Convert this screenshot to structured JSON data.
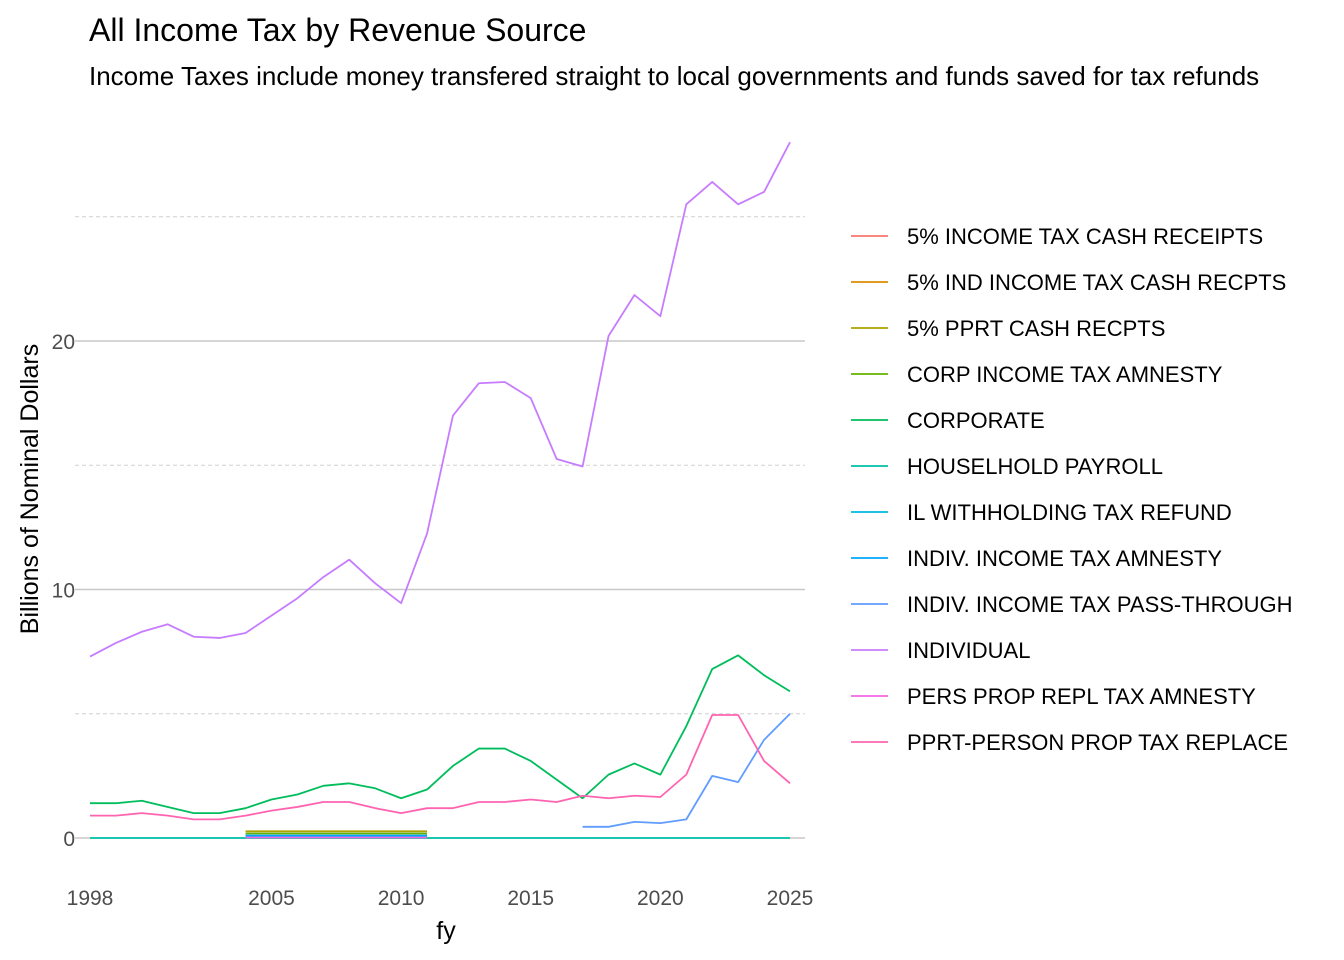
{
  "chart_data": {
    "type": "line",
    "title": "All Income Tax by Revenue Source",
    "subtitle": "Income Taxes include money transfered straight to local governments and funds saved for tax refunds",
    "xlabel": "fy",
    "ylabel": "Billions of Nominal Dollars",
    "xlim": [
      1998,
      2025
    ],
    "ylim": [
      0,
      28
    ],
    "x_ticks": [
      1998,
      2005,
      2010,
      2015,
      2020,
      2025
    ],
    "y_ticks": [
      0,
      10,
      20
    ],
    "y_minor_ticks": [
      5,
      15,
      25
    ],
    "grid": true,
    "legend_position": "right",
    "series": [
      {
        "name": "5% INCOME TAX CASH RECEIPTS",
        "color": "#F8766D",
        "x": [],
        "values": []
      },
      {
        "name": "5% IND INCOME TAX CASH RECPTS",
        "color": "#DB8E00",
        "x": [],
        "values": []
      },
      {
        "name": "5% PPRT CASH RECPTS",
        "color": "#AEA200",
        "x": [
          2004,
          2005,
          2006,
          2007,
          2008,
          2009,
          2010,
          2011
        ],
        "values": [
          0.27,
          0.27,
          0.27,
          0.27,
          0.27,
          0.27,
          0.27,
          0.27
        ]
      },
      {
        "name": "CORP INCOME TAX AMNESTY",
        "color": "#64B200",
        "x": [
          2004,
          2011
        ],
        "values": [
          0.18,
          0.18
        ]
      },
      {
        "name": "CORPORATE",
        "color": "#00BD5C",
        "x": [
          1998,
          1999,
          2000,
          2001,
          2002,
          2003,
          2004,
          2005,
          2006,
          2007,
          2008,
          2009,
          2010,
          2011,
          2012,
          2013,
          2014,
          2015,
          2016,
          2017,
          2018,
          2019,
          2020,
          2021,
          2022,
          2023,
          2024,
          2025
        ],
        "values": [
          1.4,
          1.4,
          1.5,
          1.25,
          1.0,
          1.0,
          1.2,
          1.55,
          1.75,
          2.1,
          2.2,
          2.0,
          1.6,
          1.95,
          2.9,
          3.6,
          3.6,
          3.1,
          2.35,
          1.6,
          2.55,
          3.0,
          2.55,
          4.5,
          6.8,
          7.35,
          6.55,
          5.9
        ]
      },
      {
        "name": "HOUSELHOLD PAYROLL",
        "color": "#00C1A7",
        "x": [
          1998,
          1999,
          2000,
          2001,
          2002,
          2003,
          2004,
          2005,
          2006,
          2007,
          2008,
          2009,
          2010,
          2011,
          2012,
          2013,
          2014,
          2015,
          2016,
          2017,
          2018,
          2019,
          2020,
          2021,
          2022,
          2023,
          2024,
          2025
        ],
        "values": [
          0,
          0,
          0,
          0,
          0,
          0,
          0,
          0,
          0,
          0,
          0,
          0,
          0,
          0,
          0,
          0,
          0,
          0,
          0,
          0,
          0,
          0,
          0,
          0,
          0,
          0,
          0,
          0
        ]
      },
      {
        "name": "IL WITHHOLDING TAX REFUND",
        "color": "#00BADE",
        "x": [
          2004,
          2011
        ],
        "values": [
          0.05,
          0.05
        ]
      },
      {
        "name": "INDIV. INCOME TAX AMNESTY",
        "color": "#00A6FF",
        "x": [
          2004,
          2011
        ],
        "values": [
          0.1,
          0.1
        ]
      },
      {
        "name": "INDIV. INCOME TAX PASS-THROUGH",
        "color": "#619CFF",
        "x": [
          2017,
          2018,
          2019,
          2020,
          2021,
          2022,
          2023,
          2024,
          2025
        ],
        "values": [
          0.45,
          0.45,
          0.65,
          0.6,
          0.75,
          2.5,
          2.25,
          3.95,
          5.0
        ]
      },
      {
        "name": "INDIVIDUAL",
        "color": "#C77CFF",
        "x": [
          1998,
          1999,
          2000,
          2001,
          2002,
          2003,
          2004,
          2005,
          2006,
          2007,
          2008,
          2009,
          2010,
          2011,
          2012,
          2013,
          2014,
          2015,
          2016,
          2017,
          2018,
          2019,
          2020,
          2021,
          2022,
          2023,
          2024,
          2025
        ],
        "values": [
          7.3,
          7.85,
          8.3,
          8.6,
          8.1,
          8.05,
          8.25,
          8.95,
          9.65,
          10.5,
          11.2,
          10.25,
          9.45,
          12.25,
          17.0,
          18.3,
          18.35,
          17.7,
          15.25,
          14.95,
          20.2,
          21.85,
          21.0,
          25.5,
          26.4,
          25.5,
          26.0,
          28.0
        ]
      },
      {
        "name": "PERS PROP REPL TAX AMNESTY",
        "color": "#F564E3",
        "x": [
          2004,
          2011
        ],
        "values": [
          0.02,
          0.02
        ]
      },
      {
        "name": "PPRT-PERSON PROP TAX REPLACE",
        "color": "#FF64B0",
        "x": [
          1998,
          1999,
          2000,
          2001,
          2002,
          2003,
          2004,
          2005,
          2006,
          2007,
          2008,
          2009,
          2010,
          2011,
          2012,
          2013,
          2014,
          2015,
          2016,
          2017,
          2018,
          2019,
          2020,
          2021,
          2022,
          2023,
          2024,
          2025
        ],
        "values": [
          0.9,
          0.9,
          1.0,
          0.9,
          0.75,
          0.75,
          0.9,
          1.1,
          1.25,
          1.45,
          1.45,
          1.2,
          1.0,
          1.2,
          1.2,
          1.45,
          1.45,
          1.55,
          1.45,
          1.7,
          1.6,
          1.7,
          1.65,
          2.55,
          4.95,
          4.95,
          3.1,
          2.2
        ]
      }
    ]
  }
}
